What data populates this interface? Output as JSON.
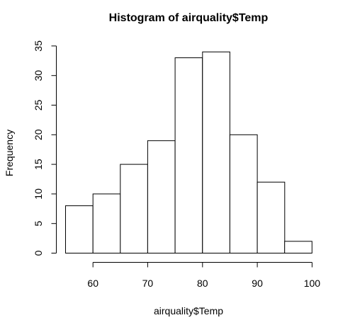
{
  "chart_data": {
    "type": "bar",
    "title": "Histogram of airquality$Temp",
    "xlabel": "airquality$Temp",
    "ylabel": "Frequency",
    "bins": [
      {
        "from": 55,
        "to": 60,
        "count": 8
      },
      {
        "from": 60,
        "to": 65,
        "count": 10
      },
      {
        "from": 65,
        "to": 70,
        "count": 15
      },
      {
        "from": 70,
        "to": 75,
        "count": 19
      },
      {
        "from": 75,
        "to": 80,
        "count": 33
      },
      {
        "from": 80,
        "to": 85,
        "count": 34
      },
      {
        "from": 85,
        "to": 90,
        "count": 20
      },
      {
        "from": 90,
        "to": 95,
        "count": 12
      },
      {
        "from": 95,
        "to": 100,
        "count": 2
      }
    ],
    "xticks": [
      "60",
      "70",
      "80",
      "90",
      "100"
    ],
    "yticks": [
      "0",
      "5",
      "10",
      "15",
      "20",
      "25",
      "30",
      "35"
    ],
    "xlim": [
      55,
      100
    ],
    "ylim": [
      0,
      35
    ],
    "grid": false,
    "colors": {
      "bar_fill": "#ffffff",
      "bar_stroke": "#000000"
    }
  }
}
